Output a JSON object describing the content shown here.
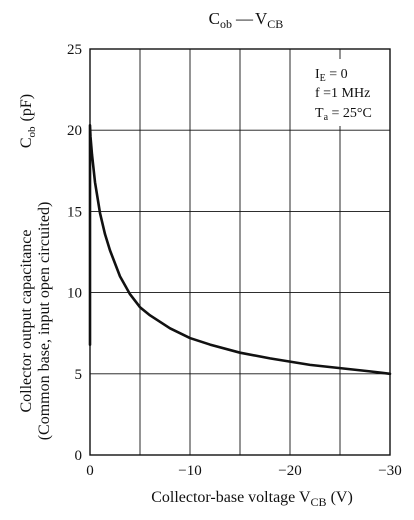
{
  "chart_data": {
    "type": "line",
    "title": {
      "main": "C",
      "main_sub": "ob",
      "dash": "—",
      "var": "V",
      "var_sub": "CB"
    },
    "xlabel": {
      "text": "Collector-base voltage  V",
      "sub": "CB",
      "unit": "  (V)"
    },
    "ylabel": {
      "line1": "Collector output capacitance",
      "line2": "(Common base, input open circuited)",
      "symbol": "C",
      "symbol_sub": "ob",
      "unit": "(pF)"
    },
    "xlim": [
      0,
      -30
    ],
    "ylim": [
      0,
      25
    ],
    "x_ticks": [
      0,
      -10,
      -20,
      -30
    ],
    "x_tick_labels": [
      "0",
      "−10",
      "−20",
      "−30"
    ],
    "x_grid": [
      0,
      -5,
      -10,
      -15,
      -20,
      -25,
      -30
    ],
    "y_ticks": [
      0,
      5,
      10,
      15,
      20,
      25
    ],
    "y_tick_labels": [
      "0",
      "5",
      "10",
      "15",
      "20",
      "25"
    ],
    "grid": true,
    "conditions": [
      {
        "text": "I",
        "sub": "E",
        "rest": " = 0"
      },
      {
        "text": "f =1 MHz",
        "sub": "",
        "rest": ""
      },
      {
        "text": "T",
        "sub": "a",
        "rest": " = 25°C"
      }
    ],
    "series": [
      {
        "x": [
          0,
          0,
          -0.05,
          -0.2,
          -0.5,
          -1,
          -1.5,
          -2,
          -3,
          -4,
          -5,
          -6,
          -8,
          -10,
          -12,
          -15,
          -18,
          -20,
          -22,
          -25,
          -28,
          -30
        ],
        "y": [
          6.8,
          20.3,
          19.6,
          18.5,
          16.8,
          14.9,
          13.6,
          12.6,
          11.0,
          9.9,
          9.1,
          8.6,
          7.8,
          7.2,
          6.8,
          6.3,
          5.95,
          5.75,
          5.55,
          5.35,
          5.15,
          5.0
        ]
      }
    ]
  }
}
